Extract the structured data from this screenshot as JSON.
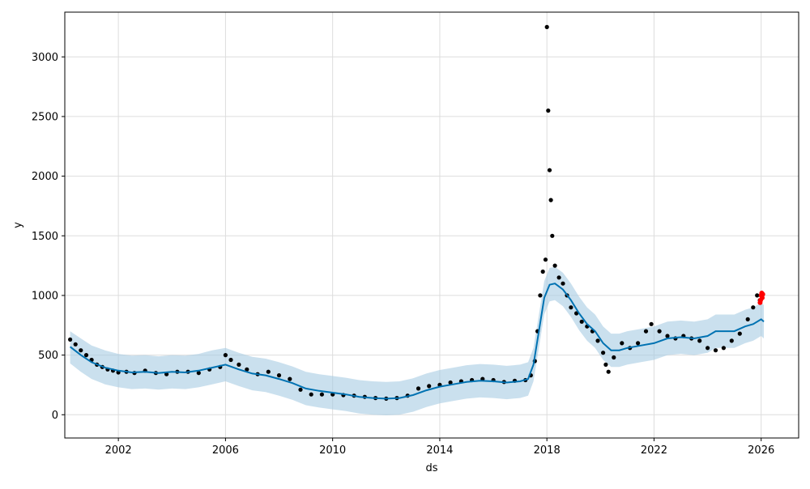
{
  "chart_data": {
    "type": "line",
    "xlabel": "ds",
    "ylabel": "y",
    "xlim": [
      2000.0,
      2027.4
    ],
    "ylim": [
      -195,
      3375
    ],
    "grid": true,
    "x_ticks": [
      2002,
      2006,
      2010,
      2014,
      2018,
      2022,
      2026
    ],
    "y_ticks": [
      0,
      500,
      1000,
      1500,
      2000,
      2500,
      3000
    ],
    "colors": {
      "forecast": "#0072b2",
      "interval": "#a6cbe3",
      "observed": "#000000",
      "highlight": "#ff0000",
      "grid": "#dddddd"
    },
    "series": [
      {
        "kind": "forecast_line",
        "x": [
          2000.2,
          2000.6,
          2001.0,
          2001.5,
          2002.0,
          2002.5,
          2003.0,
          2003.5,
          2004.0,
          2004.5,
          2005.0,
          2005.5,
          2006.0,
          2006.5,
          2007.0,
          2007.5,
          2008.0,
          2008.5,
          2009.0,
          2009.5,
          2010.0,
          2010.5,
          2011.0,
          2011.5,
          2012.0,
          2012.5,
          2013.0,
          2013.5,
          2014.0,
          2014.5,
          2015.0,
          2015.5,
          2016.0,
          2016.5,
          2017.0,
          2017.3,
          2017.5,
          2017.7,
          2017.9,
          2018.1,
          2018.3,
          2018.6,
          2018.9,
          2019.2,
          2019.5,
          2019.8,
          2020.1,
          2020.4,
          2020.7,
          2021.0,
          2021.5,
          2022.0,
          2022.5,
          2023.0,
          2023.5,
          2024.0,
          2024.3,
          2024.6,
          2025.0,
          2025.4,
          2025.7,
          2026.0,
          2026.1
        ],
        "y": [
          570,
          500,
          440,
          395,
          370,
          355,
          360,
          350,
          360,
          355,
          370,
          395,
          420,
          380,
          345,
          330,
          300,
          265,
          220,
          200,
          185,
          170,
          150,
          140,
          135,
          140,
          165,
          205,
          235,
          255,
          275,
          285,
          280,
          270,
          280,
          300,
          420,
          700,
          980,
          1090,
          1100,
          1050,
          960,
          850,
          760,
          700,
          600,
          540,
          540,
          560,
          580,
          600,
          640,
          650,
          640,
          660,
          700,
          700,
          700,
          740,
          760,
          800,
          780
        ]
      },
      {
        "kind": "uncertainty_interval",
        "x": [
          2000.2,
          2000.6,
          2001.0,
          2001.5,
          2002.0,
          2002.5,
          2003.0,
          2003.5,
          2004.0,
          2004.5,
          2005.0,
          2005.5,
          2006.0,
          2006.5,
          2007.0,
          2007.5,
          2008.0,
          2008.5,
          2009.0,
          2009.5,
          2010.0,
          2010.5,
          2011.0,
          2011.5,
          2012.0,
          2012.5,
          2013.0,
          2013.5,
          2014.0,
          2014.5,
          2015.0,
          2015.5,
          2016.0,
          2016.5,
          2017.0,
          2017.3,
          2017.5,
          2017.7,
          2017.9,
          2018.1,
          2018.3,
          2018.6,
          2018.9,
          2019.2,
          2019.5,
          2019.8,
          2020.1,
          2020.4,
          2020.7,
          2021.0,
          2021.5,
          2022.0,
          2022.5,
          2023.0,
          2023.5,
          2024.0,
          2024.3,
          2024.6,
          2025.0,
          2025.4,
          2025.7,
          2026.0,
          2026.1
        ],
        "upper": [
          700,
          640,
          580,
          540,
          510,
          495,
          500,
          490,
          500,
          495,
          510,
          540,
          560,
          520,
          485,
          470,
          440,
          405,
          360,
          340,
          325,
          310,
          290,
          280,
          275,
          280,
          305,
          345,
          375,
          395,
          415,
          425,
          420,
          410,
          420,
          440,
          560,
          840,
          1120,
          1230,
          1240,
          1190,
          1100,
          990,
          900,
          840,
          740,
          680,
          680,
          700,
          720,
          740,
          780,
          790,
          780,
          800,
          840,
          840,
          840,
          880,
          900,
          940,
          920
        ],
        "lower": [
          430,
          360,
          300,
          255,
          230,
          215,
          220,
          210,
          220,
          215,
          230,
          255,
          280,
          240,
          205,
          190,
          160,
          125,
          80,
          60,
          45,
          30,
          10,
          0,
          -5,
          0,
          25,
          65,
          95,
          115,
          135,
          145,
          140,
          130,
          140,
          160,
          280,
          560,
          840,
          950,
          960,
          910,
          820,
          710,
          620,
          560,
          460,
          400,
          400,
          420,
          440,
          460,
          500,
          510,
          500,
          520,
          560,
          560,
          560,
          600,
          620,
          660,
          640
        ]
      },
      {
        "kind": "observed_points",
        "x": [
          2000.2,
          2000.4,
          2000.6,
          2000.8,
          2001.0,
          2001.2,
          2001.4,
          2001.6,
          2001.8,
          2002.0,
          2002.3,
          2002.6,
          2003.0,
          2003.4,
          2003.8,
          2004.2,
          2004.6,
          2005.0,
          2005.4,
          2005.8,
          2006.0,
          2006.2,
          2006.5,
          2006.8,
          2007.2,
          2007.6,
          2008.0,
          2008.4,
          2008.8,
          2009.2,
          2009.6,
          2010.0,
          2010.4,
          2010.8,
          2011.2,
          2011.6,
          2012.0,
          2012.4,
          2012.8,
          2013.2,
          2013.6,
          2014.0,
          2014.4,
          2014.8,
          2015.2,
          2015.6,
          2016.0,
          2016.4,
          2016.8,
          2017.2,
          2017.4,
          2017.55,
          2017.65,
          2017.75,
          2017.85,
          2017.95,
          2018.0,
          2018.05,
          2018.1,
          2018.15,
          2018.2,
          2018.3,
          2018.45,
          2018.6,
          2018.75,
          2018.9,
          2019.1,
          2019.3,
          2019.5,
          2019.7,
          2019.9,
          2020.1,
          2020.2,
          2020.3,
          2020.5,
          2020.8,
          2021.1,
          2021.4,
          2021.7,
          2021.9,
          2022.2,
          2022.5,
          2022.8,
          2023.1,
          2023.4,
          2023.7,
          2024.0,
          2024.3,
          2024.6,
          2024.9,
          2025.2,
          2025.5,
          2025.7,
          2025.85,
          2025.95
        ],
        "y": [
          630,
          590,
          540,
          500,
          460,
          420,
          400,
          380,
          370,
          355,
          360,
          350,
          370,
          350,
          340,
          360,
          360,
          350,
          380,
          400,
          500,
          460,
          420,
          380,
          340,
          360,
          330,
          300,
          210,
          170,
          170,
          170,
          165,
          160,
          150,
          140,
          135,
          140,
          160,
          220,
          240,
          250,
          270,
          280,
          290,
          300,
          290,
          275,
          285,
          290,
          330,
          450,
          700,
          1000,
          1200,
          1300,
          3250,
          2550,
          2050,
          1800,
          1500,
          1250,
          1150,
          1100,
          1000,
          900,
          850,
          780,
          740,
          700,
          620,
          520,
          420,
          360,
          480,
          600,
          560,
          600,
          700,
          760,
          700,
          660,
          640,
          660,
          640,
          620,
          560,
          540,
          560,
          620,
          680,
          800,
          900,
          1000,
          960
        ]
      },
      {
        "kind": "highlighted_points",
        "x": [
          2025.96,
          2025.98,
          2026.0,
          2026.02,
          2026.04,
          2026.06
        ],
        "y": [
          940,
          960,
          1000,
          1020,
          980,
          1010
        ]
      }
    ]
  }
}
